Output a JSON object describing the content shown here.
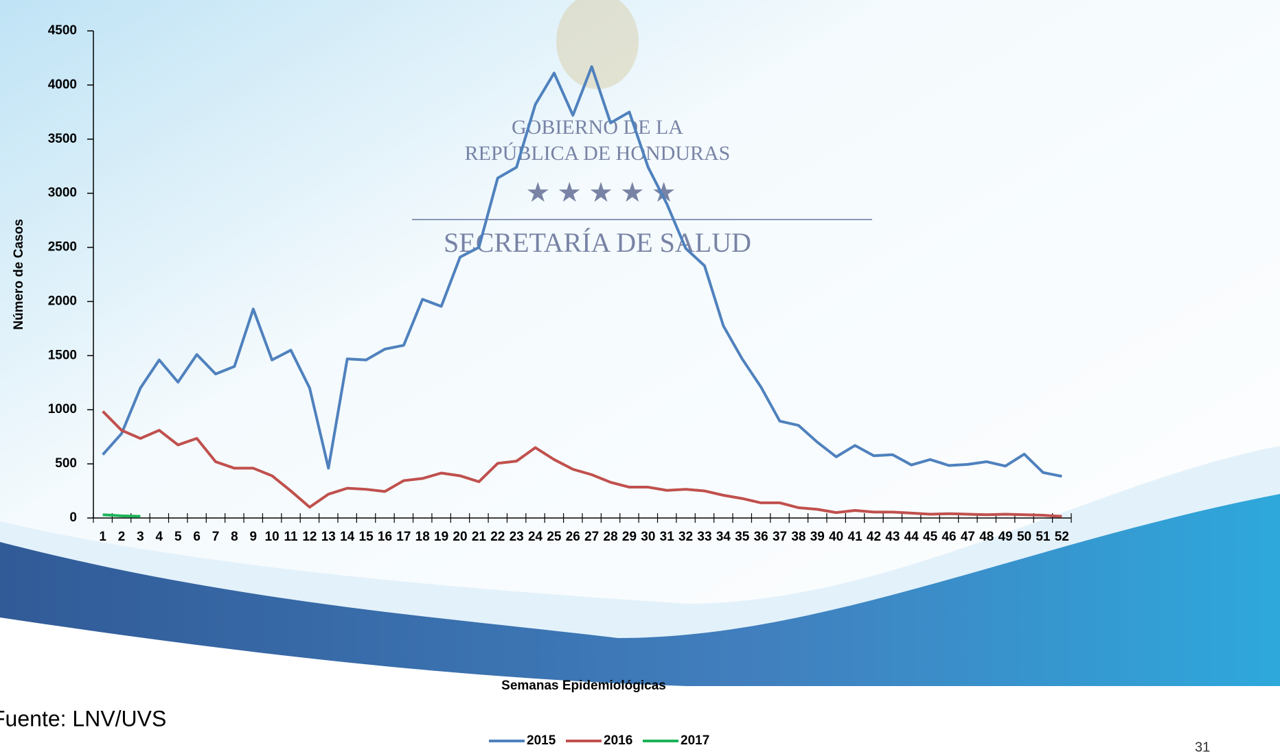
{
  "chart_data": {
    "type": "line",
    "x_label": "Semanas Epidemiológicas",
    "y_label": "Número de Casos",
    "categories": [
      "1",
      "2",
      "3",
      "4",
      "5",
      "6",
      "7",
      "8",
      "9",
      "10",
      "11",
      "12",
      "13",
      "14",
      "15",
      "16",
      "17",
      "18",
      "19",
      "20",
      "21",
      "22",
      "23",
      "24",
      "25",
      "26",
      "27",
      "28",
      "29",
      "30",
      "31",
      "32",
      "33",
      "34",
      "35",
      "36",
      "37",
      "38",
      "39",
      "40",
      "41",
      "42",
      "43",
      "44",
      "45",
      "46",
      "47",
      "48",
      "49",
      "50",
      "51",
      "52"
    ],
    "series": [
      {
        "name": "2015",
        "color": "#4f81bd",
        "values": [
          585,
          780,
          1200,
          1460,
          1255,
          1510,
          1330,
          1400,
          1930,
          1460,
          1550,
          1200,
          460,
          1470,
          1460,
          1560,
          1595,
          2020,
          1955,
          2410,
          2500,
          3140,
          3240,
          3820,
          4110,
          3720,
          4170,
          3650,
          3750,
          3240,
          2900,
          2490,
          2330,
          1775,
          1470,
          1210,
          895,
          855,
          700,
          565,
          670,
          575,
          585,
          490,
          540,
          485,
          495,
          520,
          480,
          590,
          420,
          385
        ]
      },
      {
        "name": "2016",
        "color": "#c0504d",
        "values": [
          985,
          810,
          735,
          810,
          675,
          735,
          520,
          460,
          460,
          390,
          250,
          100,
          220,
          275,
          265,
          245,
          345,
          365,
          415,
          390,
          335,
          505,
          525,
          650,
          540,
          450,
          400,
          330,
          285,
          285,
          255,
          265,
          250,
          210,
          180,
          140,
          140,
          95,
          80,
          50,
          70,
          55,
          55,
          45,
          35,
          40,
          35,
          30,
          35,
          30,
          25,
          15
        ]
      },
      {
        "name": "2017",
        "color": "#1db35a",
        "values": [
          30,
          20,
          15,
          null,
          null,
          null,
          null,
          null,
          null,
          null,
          null,
          null,
          null,
          null,
          null,
          null,
          null,
          null,
          null,
          null,
          null,
          null,
          null,
          null,
          null,
          null,
          null,
          null,
          null,
          null,
          null,
          null,
          null,
          null,
          null,
          null,
          null,
          null,
          null,
          null,
          null,
          null,
          null,
          null,
          null,
          null,
          null,
          null,
          null,
          null,
          null,
          null
        ]
      }
    ],
    "ylim": [
      0,
      4500
    ],
    "yticks": [
      0,
      500,
      1000,
      1500,
      2000,
      2500,
      3000,
      3500,
      4000,
      4500
    ],
    "legend": "bottom"
  },
  "logo": {
    "line1": "GOBIERNO DE LA",
    "line2": "REPÚBLICA DE HONDURAS",
    "line3": "SECRETARÍA DE SALUD"
  },
  "footer": {
    "source": "Fuente: LNV/UVS",
    "page": "31"
  }
}
